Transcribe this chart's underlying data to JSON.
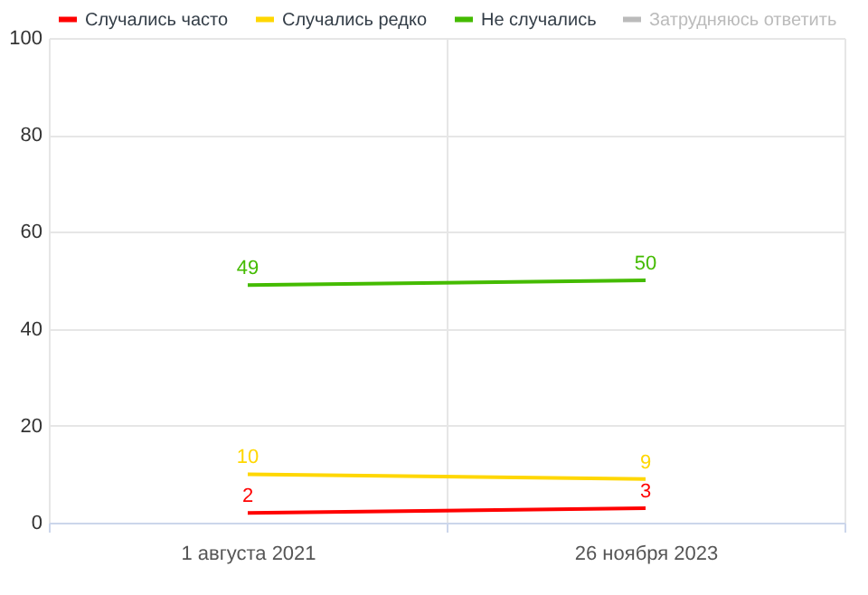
{
  "chart_data": {
    "type": "line",
    "categories": [
      "1 августа 2021",
      "26 ноября 2023"
    ],
    "series": [
      {
        "name": "Случались часто",
        "color": "#ff0000",
        "values": [
          2,
          3
        ]
      },
      {
        "name": "Случались редко",
        "color": "#ffd700",
        "values": [
          10,
          9
        ]
      },
      {
        "name": "Не случались",
        "color": "#44bb00",
        "values": [
          49,
          50
        ]
      },
      {
        "name": "Затрудняюсь ответить",
        "color": "#bbbbbb",
        "values": [
          null,
          null
        ]
      }
    ],
    "ylim": [
      0,
      100
    ],
    "yticks": [
      0,
      20,
      40,
      60,
      80,
      100
    ],
    "grid": true,
    "legend": "top",
    "data_labels": true,
    "marker": "none",
    "line_style": "solid"
  }
}
